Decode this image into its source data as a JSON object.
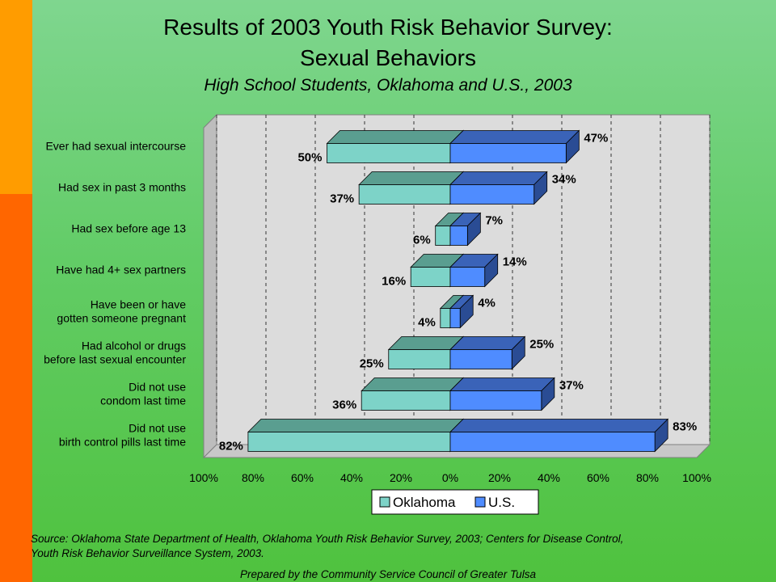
{
  "colors": {
    "oklahoma_face": "#7dd3c8",
    "oklahoma_top": "#5a9e90",
    "oklahoma_side": "#3f7a70",
    "us_face": "#4f8cff",
    "us_top": "#3a63b8",
    "us_side": "#2a4c94",
    "wall": "#dcdcdc",
    "wall_side": "#bdbdbd"
  },
  "header": {
    "title_line1": "Results of 2003 Youth Risk Behavior Survey:",
    "title_line2": "Sexual Behaviors",
    "subtitle": "High School Students, Oklahoma and U.S., 2003"
  },
  "chart_data": {
    "type": "bar",
    "orientation": "horizontal",
    "layout": "back-to-back",
    "categories": [
      [
        "Ever had sexual intercourse"
      ],
      [
        "Had sex in past 3 months"
      ],
      [
        "Had sex before age 13"
      ],
      [
        "Have had 4+ sex partners"
      ],
      [
        "Have been or have",
        "gotten someone pregnant"
      ],
      [
        "Had alcohol or drugs",
        "before last sexual encounter"
      ],
      [
        "Did not use",
        "condom last time"
      ],
      [
        "Did not use",
        "birth control pills last time"
      ]
    ],
    "series": [
      {
        "name": "Oklahoma",
        "side": "left",
        "values": [
          50,
          37,
          6,
          16,
          4,
          25,
          36,
          82
        ]
      },
      {
        "name": "U.S.",
        "side": "right",
        "values": [
          47,
          34,
          7,
          14,
          4,
          25,
          37,
          83
        ]
      }
    ],
    "xlim": [
      -100,
      100
    ],
    "xticks": [
      "100%",
      "80%",
      "60%",
      "40%",
      "20%",
      "0%",
      "20%",
      "40%",
      "60%",
      "80%",
      "100%"
    ],
    "grid": "vertical dashed",
    "legend": "bottom-center",
    "value_suffix": "%"
  },
  "footer": {
    "source_line1": "Source:  Oklahoma State Department of Health, Oklahoma Youth Risk Behavior Survey, 2003; Centers for Disease Control,",
    "source_line2": "Youth Risk Behavior Surveillance System, 2003.",
    "prepared": "Prepared by the Community Service Council of Greater Tulsa"
  }
}
